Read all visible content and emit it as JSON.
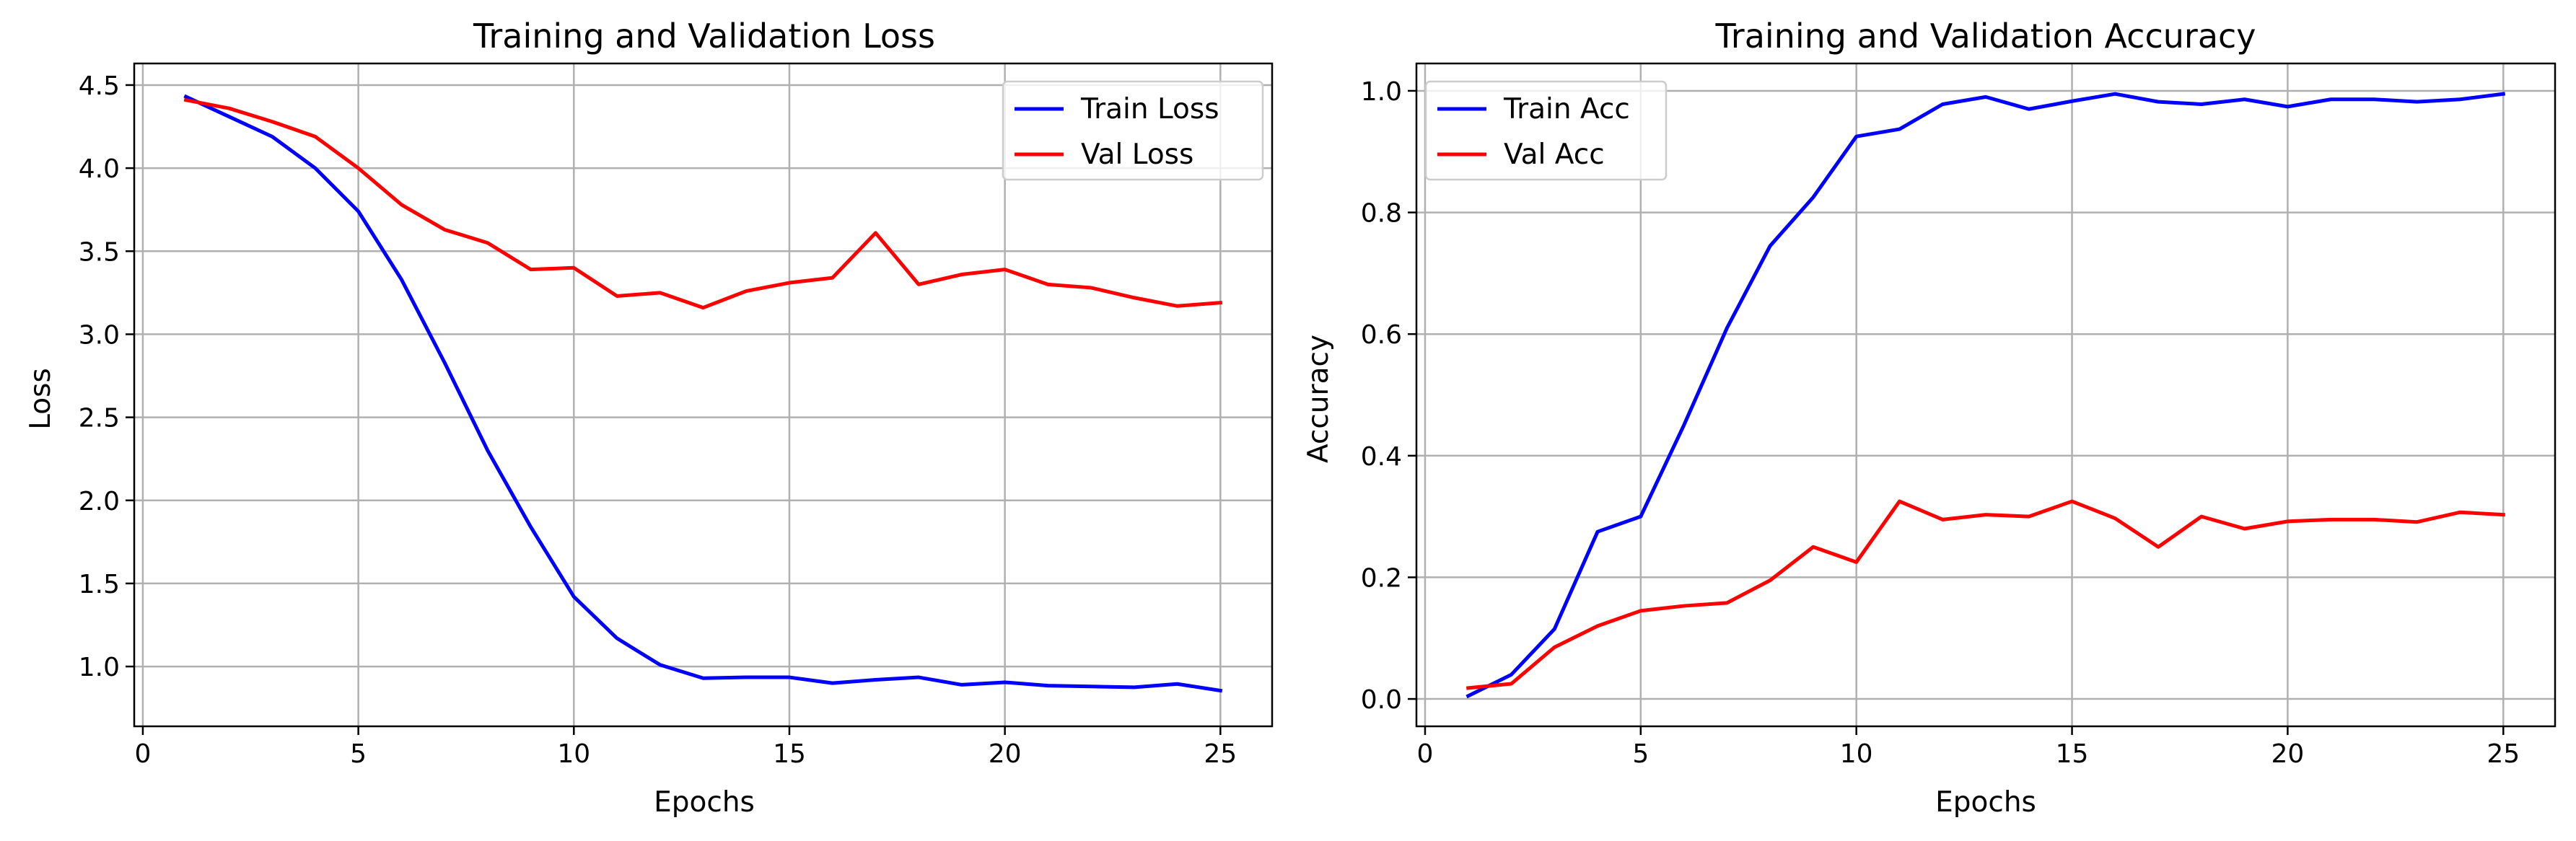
{
  "chart_data": [
    {
      "type": "line",
      "title": "Training and Validation Loss",
      "xlabel": "Epochs",
      "ylabel": "Loss",
      "xlim": [
        -0.2,
        26.2
      ],
      "ylim": [
        0.64,
        4.63
      ],
      "xticks": [
        0,
        5,
        10,
        15,
        20,
        25
      ],
      "xtick_labels": [
        "0",
        "5",
        "10",
        "15",
        "20",
        "25"
      ],
      "yticks": [
        1.0,
        1.5,
        2.0,
        2.5,
        3.0,
        3.5,
        4.0,
        4.5
      ],
      "ytick_labels": [
        "1.0",
        "1.5",
        "2.0",
        "2.5",
        "3.0",
        "3.5",
        "4.0",
        "4.5"
      ],
      "grid": true,
      "legend_position": "top-right",
      "x": [
        1,
        2,
        3,
        4,
        5,
        6,
        7,
        8,
        9,
        10,
        11,
        12,
        13,
        14,
        15,
        16,
        17,
        18,
        19,
        20,
        21,
        22,
        23,
        24,
        25
      ],
      "series": [
        {
          "name": "Train Loss",
          "color": "#0000ff",
          "values": [
            4.43,
            4.31,
            4.19,
            4.0,
            3.74,
            3.33,
            2.83,
            2.3,
            1.84,
            1.42,
            1.17,
            1.01,
            0.93,
            0.935,
            0.935,
            0.9,
            0.92,
            0.935,
            0.89,
            0.905,
            0.885,
            0.88,
            0.875,
            0.895,
            0.855
          ]
        },
        {
          "name": "Val Loss",
          "color": "#ff0000",
          "values": [
            4.41,
            4.36,
            4.28,
            4.19,
            4.0,
            3.78,
            3.63,
            3.55,
            3.39,
            3.4,
            3.23,
            3.25,
            3.16,
            3.26,
            3.31,
            3.34,
            3.61,
            3.3,
            3.36,
            3.39,
            3.3,
            3.28,
            3.22,
            3.17,
            3.19
          ]
        }
      ]
    },
    {
      "type": "line",
      "title": "Training and Validation Accuracy",
      "xlabel": "Epochs",
      "ylabel": "Accuracy",
      "xlim": [
        -0.2,
        26.2
      ],
      "ylim": [
        -0.045,
        1.045
      ],
      "xticks": [
        0,
        5,
        10,
        15,
        20,
        25
      ],
      "xtick_labels": [
        "0",
        "5",
        "10",
        "15",
        "20",
        "25"
      ],
      "yticks": [
        0.0,
        0.2,
        0.4,
        0.6,
        0.8,
        1.0
      ],
      "ytick_labels": [
        "0.0",
        "0.2",
        "0.4",
        "0.6",
        "0.8",
        "1.0"
      ],
      "grid": true,
      "legend_position": "top-left",
      "x": [
        1,
        2,
        3,
        4,
        5,
        6,
        7,
        8,
        9,
        10,
        11,
        12,
        13,
        14,
        15,
        16,
        17,
        18,
        19,
        20,
        21,
        22,
        23,
        24,
        25
      ],
      "series": [
        {
          "name": "Train Acc",
          "color": "#0000ff",
          "values": [
            0.005,
            0.04,
            0.115,
            0.275,
            0.3,
            0.45,
            0.61,
            0.745,
            0.825,
            0.925,
            0.937,
            0.978,
            0.99,
            0.97,
            0.983,
            0.995,
            0.982,
            0.978,
            0.986,
            0.974,
            0.986,
            0.986,
            0.982,
            0.986,
            0.995
          ]
        },
        {
          "name": "Val Acc",
          "color": "#ff0000",
          "values": [
            0.018,
            0.025,
            0.085,
            0.12,
            0.145,
            0.153,
            0.158,
            0.195,
            0.25,
            0.225,
            0.325,
            0.295,
            0.303,
            0.3,
            0.325,
            0.297,
            0.25,
            0.3,
            0.28,
            0.292,
            0.295,
            0.295,
            0.291,
            0.307,
            0.303
          ]
        }
      ]
    }
  ]
}
